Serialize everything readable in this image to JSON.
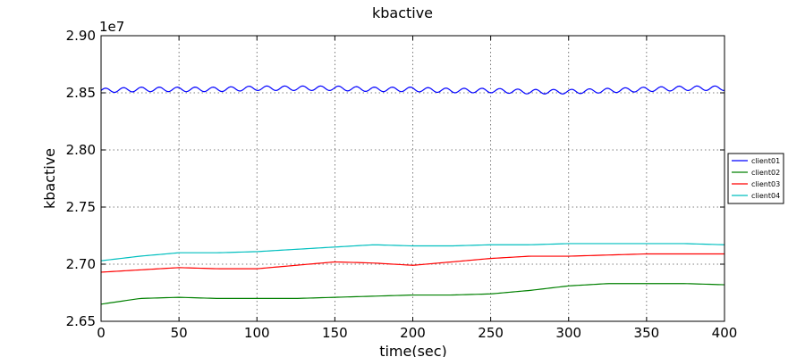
{
  "chart_data": {
    "type": "line",
    "title": "kbactive",
    "xlabel": "time(sec)",
    "ylabel": "kbactive",
    "offset_label": "1e7",
    "xlim": [
      0,
      400
    ],
    "ylim": [
      2.65,
      2.9
    ],
    "xticks": [
      "0",
      "50",
      "100",
      "150",
      "200",
      "250",
      "300",
      "350",
      "400"
    ],
    "yticks": [
      "2.65",
      "2.70",
      "2.75",
      "2.80",
      "2.85",
      "2.90"
    ],
    "grid": true,
    "legend_position": "right",
    "x": [
      0,
      25,
      50,
      75,
      100,
      125,
      150,
      175,
      200,
      225,
      250,
      275,
      300,
      325,
      350,
      375,
      400
    ],
    "series": [
      {
        "name": "client01",
        "color": "#0000ff",
        "values": [
          2.852,
          2.853,
          2.853,
          2.853,
          2.854,
          2.854,
          2.854,
          2.853,
          2.853,
          2.852,
          2.852,
          2.851,
          2.851,
          2.852,
          2.853,
          2.854,
          2.854
        ],
        "oscillation_amplitude": 0.002
      },
      {
        "name": "client02",
        "color": "#008000",
        "values": [
          2.665,
          2.67,
          2.671,
          2.67,
          2.67,
          2.67,
          2.671,
          2.672,
          2.673,
          2.673,
          2.674,
          2.677,
          2.681,
          2.683,
          2.683,
          2.683,
          2.682
        ]
      },
      {
        "name": "client03",
        "color": "#ff0000",
        "values": [
          2.693,
          2.695,
          2.697,
          2.696,
          2.696,
          2.699,
          2.702,
          2.701,
          2.699,
          2.702,
          2.705,
          2.707,
          2.707,
          2.708,
          2.709,
          2.709,
          2.709
        ]
      },
      {
        "name": "client04",
        "color": "#00bfbf",
        "values": [
          2.703,
          2.707,
          2.71,
          2.71,
          2.711,
          2.713,
          2.715,
          2.717,
          2.716,
          2.716,
          2.717,
          2.717,
          2.718,
          2.718,
          2.718,
          2.718,
          2.717
        ]
      }
    ]
  }
}
